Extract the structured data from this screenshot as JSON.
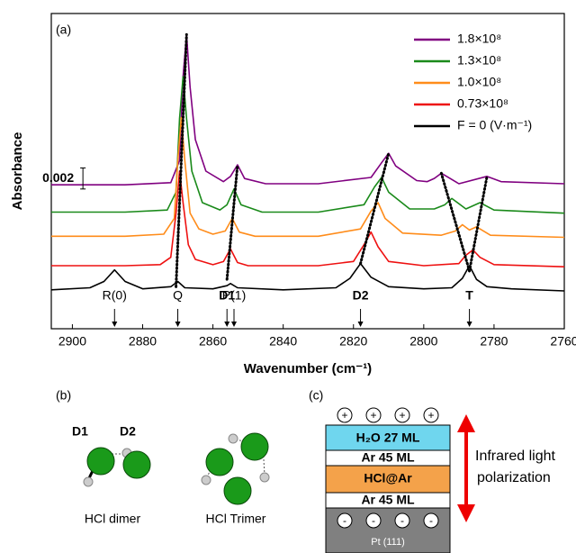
{
  "chart_data": {
    "type": "line",
    "panel_label": "(a)",
    "y_label": "Absorbance",
    "x_label": "Wavenumber (cm⁻¹)",
    "xlim": [
      2906,
      2760
    ],
    "xticks": [
      2900,
      2880,
      2860,
      2840,
      2820,
      2800,
      2780,
      2760
    ],
    "ylim": [
      0,
      0.03
    ],
    "legend": "upper right",
    "scale_bar": {
      "value": 0.002,
      "label": "0.002"
    },
    "series": [
      {
        "name": "1.8×10⁸",
        "color": "#800080",
        "x": [
          2906,
          2885,
          2872,
          2869.5,
          2868.5,
          2867.5,
          2866.5,
          2865,
          2862,
          2857,
          2855,
          2853,
          2851,
          2845,
          2830,
          2815,
          2812,
          2810,
          2808,
          2802,
          2799,
          2797,
          2795,
          2790,
          2782,
          2778,
          2760
        ],
        "values": [
          0.0137,
          0.0137,
          0.0139,
          0.016,
          0.024,
          0.028,
          0.023,
          0.018,
          0.015,
          0.014,
          0.0145,
          0.0156,
          0.0143,
          0.0138,
          0.0138,
          0.0144,
          0.0158,
          0.0167,
          0.0155,
          0.0141,
          0.014,
          0.0143,
          0.0148,
          0.0138,
          0.0145,
          0.014,
          0.0138
        ]
      },
      {
        "name": "1.3×10⁸",
        "color": "#1a8a1a",
        "x": [
          2906,
          2885,
          2873,
          2870.5,
          2869.5,
          2868.5,
          2867.5,
          2866,
          2863,
          2858,
          2856,
          2854,
          2852,
          2846,
          2830,
          2817,
          2814,
          2812,
          2810,
          2804,
          2797,
          2794,
          2792,
          2788,
          2784,
          2780,
          2760
        ],
        "values": [
          0.0111,
          0.0111,
          0.0113,
          0.013,
          0.02,
          0.024,
          0.02,
          0.015,
          0.012,
          0.0113,
          0.0118,
          0.0133,
          0.0118,
          0.0111,
          0.0111,
          0.0118,
          0.0135,
          0.0144,
          0.013,
          0.0114,
          0.0114,
          0.0118,
          0.0124,
          0.0114,
          0.012,
          0.0113,
          0.011
        ]
      },
      {
        "name": "1.0×10⁸",
        "color": "#ff8c1a",
        "x": [
          2906,
          2885,
          2874,
          2871,
          2870,
          2869,
          2868,
          2866.5,
          2864,
          2860,
          2856.5,
          2854.5,
          2852.5,
          2848,
          2830,
          2818,
          2815,
          2813,
          2811,
          2806,
          2795,
          2791,
          2789,
          2787,
          2785,
          2781,
          2760
        ],
        "values": [
          0.0088,
          0.0088,
          0.009,
          0.0105,
          0.016,
          0.0201,
          0.016,
          0.011,
          0.0095,
          0.009,
          0.0093,
          0.0105,
          0.0092,
          0.0088,
          0.0088,
          0.0095,
          0.0112,
          0.012,
          0.0105,
          0.0091,
          0.0089,
          0.0093,
          0.0099,
          0.0094,
          0.0097,
          0.0089,
          0.0087
        ]
      },
      {
        "name": "0.73×10⁸",
        "color": "#ee1111",
        "x": [
          2906,
          2885,
          2875,
          2872,
          2870.5,
          2869.5,
          2868.5,
          2867,
          2865,
          2860,
          2857,
          2855,
          2853,
          2850,
          2830,
          2820,
          2817,
          2815,
          2813,
          2810,
          2800,
          2790,
          2788,
          2786,
          2784,
          2780,
          2760
        ],
        "values": [
          0.006,
          0.006,
          0.0061,
          0.0068,
          0.011,
          0.015,
          0.012,
          0.008,
          0.0066,
          0.0061,
          0.0064,
          0.0076,
          0.0063,
          0.006,
          0.006,
          0.0064,
          0.008,
          0.0092,
          0.0078,
          0.0064,
          0.006,
          0.0062,
          0.007,
          0.0075,
          0.0068,
          0.0061,
          0.0059
        ]
      },
      {
        "name": "F = 0 (V·m⁻¹)",
        "color": "#000000",
        "x": [
          2906,
          2895,
          2891,
          2888,
          2885,
          2880,
          2872,
          2870,
          2868,
          2860,
          2856,
          2855,
          2853,
          2840,
          2825,
          2821,
          2818,
          2815,
          2810,
          2800,
          2792,
          2789,
          2787,
          2785,
          2782,
          2775,
          2760
        ],
        "values": [
          0.0037,
          0.0039,
          0.0045,
          0.0056,
          0.0045,
          0.0038,
          0.004,
          0.0045,
          0.0039,
          0.0038,
          0.0041,
          0.0043,
          0.0039,
          0.0037,
          0.0039,
          0.0048,
          0.0062,
          0.0049,
          0.004,
          0.0038,
          0.0039,
          0.0048,
          0.006,
          0.0047,
          0.004,
          0.0038,
          0.0036
        ]
      }
    ],
    "guides": [
      {
        "x": [
          2870.5,
          2867.5
        ],
        "y": [
          0.004,
          0.028
        ]
      },
      {
        "x": [
          2856,
          2853
        ],
        "y": [
          0.0047,
          0.0156
        ]
      },
      {
        "x": [
          2818,
          2810
        ],
        "y": [
          0.0062,
          0.0167
        ]
      },
      {
        "x": [
          2787,
          2795
        ],
        "y": [
          0.0055,
          0.0148
        ]
      },
      {
        "x": [
          2787,
          2782
        ],
        "y": [
          0.0055,
          0.0145
        ]
      }
    ],
    "annotations": [
      {
        "text": "R(0)",
        "x": 2888,
        "bold": false
      },
      {
        "text": "Q",
        "x": 2870,
        "bold": false
      },
      {
        "text": "D1",
        "x": 2856,
        "bold": true
      },
      {
        "text": "P(1)",
        "x": 2854,
        "bold": false
      },
      {
        "text": "D2",
        "x": 2818,
        "bold": true
      },
      {
        "text": "T",
        "x": 2787,
        "bold": true
      }
    ]
  },
  "panel_b": {
    "label": "(b)",
    "d1": "D1",
    "d2": "D2",
    "dimer": "HCl dimer",
    "trimer": "HCl Trimer"
  },
  "panel_c": {
    "label": "(c)",
    "plus": [
      "+",
      "+",
      "+",
      "+"
    ],
    "minus": [
      "-",
      "-",
      "-",
      "-"
    ],
    "layers": [
      "H₂O 27 ML",
      "Ar 45 ML",
      "HCl@Ar",
      "Ar 45 ML"
    ],
    "substrate": "Pt (111)",
    "arrow_text": [
      "Infrared light",
      "polarization"
    ]
  }
}
